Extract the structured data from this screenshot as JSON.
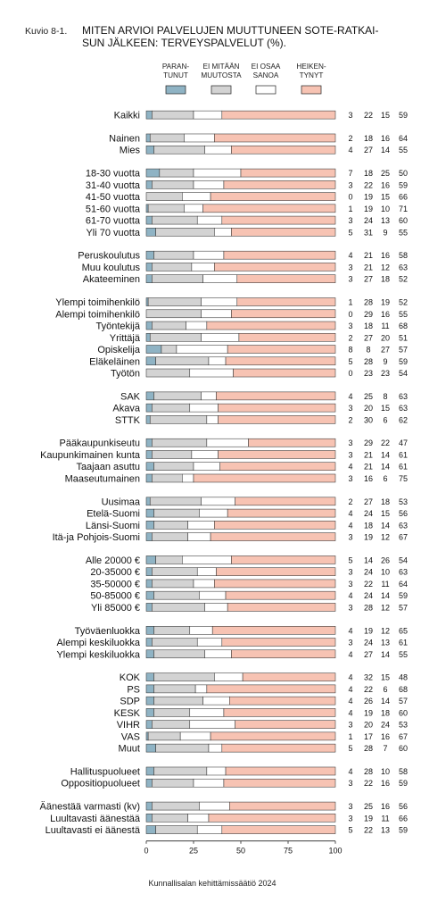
{
  "figure": {
    "number": "Kuvio 8-1.",
    "title_lines": [
      "MITEN ARVIOI PALVELUJEN MUUTTUNEEN SOTE-RATKAI-",
      "SUN JÄLKEEN: TERVEYSPALVELUT (%)."
    ],
    "source": "Kunnallisalan kehittämissäätiö 2024"
  },
  "chart_data": {
    "type": "bar",
    "stacked": true,
    "orientation": "horizontal",
    "title": "MITEN ARVIOI PALVELUJEN MUUTTUNEEN SOTE-RATKAISUN JÄLKEEN: TERVEYSPALVELUT (%).",
    "xlim": [
      0,
      100
    ],
    "xticks": [
      "0",
      "25",
      "50",
      "75",
      "100"
    ],
    "legend": {
      "placement": "top"
    },
    "series": [
      {
        "name_lines": [
          "PARAN-",
          "TUNUT"
        ],
        "color": "#8fb3c4"
      },
      {
        "name_lines": [
          "EI MITÄÄN",
          "MUUTOSTA"
        ],
        "color": "#d3d3d3"
      },
      {
        "name_lines": [
          "EI OSAA",
          "SANOA"
        ],
        "color": "#ffffff"
      },
      {
        "name_lines": [
          "HEIKEN-",
          "TYNYT"
        ],
        "color": "#f7c3b3"
      }
    ],
    "groups": [
      {
        "rows": [
          {
            "label": "Kaikki",
            "values": [
              3,
              22,
              15,
              59
            ]
          }
        ]
      },
      {
        "rows": [
          {
            "label": "Nainen",
            "values": [
              2,
              18,
              16,
              64
            ]
          },
          {
            "label": "Mies",
            "values": [
              4,
              27,
              14,
              55
            ]
          }
        ]
      },
      {
        "rows": [
          {
            "label": "18-30 vuotta",
            "values": [
              7,
              18,
              25,
              50
            ]
          },
          {
            "label": "31-40 vuotta",
            "values": [
              3,
              22,
              16,
              59
            ]
          },
          {
            "label": "41-50 vuotta",
            "values": [
              0,
              19,
              15,
              66
            ]
          },
          {
            "label": "51-60 vuotta",
            "values": [
              1,
              19,
              10,
              71
            ]
          },
          {
            "label": "61-70 vuotta",
            "values": [
              3,
              24,
              13,
              60
            ]
          },
          {
            "label": "Yli 70 vuotta",
            "values": [
              5,
              31,
              9,
              55
            ]
          }
        ]
      },
      {
        "rows": [
          {
            "label": "Peruskoulutus",
            "values": [
              4,
              21,
              16,
              58
            ]
          },
          {
            "label": "Muu koulutus",
            "values": [
              3,
              21,
              12,
              63
            ]
          },
          {
            "label": "Akateeminen",
            "values": [
              3,
              27,
              18,
              52
            ]
          }
        ]
      },
      {
        "rows": [
          {
            "label": "Ylempi toimihenkilö",
            "values": [
              1,
              28,
              19,
              52
            ]
          },
          {
            "label": "Alempi toimihenkilö",
            "values": [
              0,
              29,
              16,
              55
            ]
          },
          {
            "label": "Työntekijä",
            "values": [
              3,
              18,
              11,
              68
            ]
          },
          {
            "label": "Yrittäjä",
            "values": [
              2,
              27,
              20,
              51
            ]
          },
          {
            "label": "Opiskelija",
            "values": [
              8,
              8,
              27,
              57
            ]
          },
          {
            "label": "Eläkeläinen",
            "values": [
              5,
              28,
              9,
              59
            ]
          },
          {
            "label": "Työtön",
            "values": [
              0,
              23,
              23,
              54
            ]
          }
        ]
      },
      {
        "rows": [
          {
            "label": "SAK",
            "values": [
              4,
              25,
              8,
              63
            ]
          },
          {
            "label": "Akava",
            "values": [
              3,
              20,
              15,
              63
            ]
          },
          {
            "label": "STTK",
            "values": [
              2,
              30,
              6,
              62
            ]
          }
        ]
      },
      {
        "rows": [
          {
            "label": "Pääkaupunkiseutu",
            "values": [
              3,
              29,
              22,
              47
            ]
          },
          {
            "label": "Kaupunkimainen kunta",
            "values": [
              3,
              21,
              14,
              61
            ]
          },
          {
            "label": "Taajaan asuttu",
            "values": [
              4,
              21,
              14,
              61
            ]
          },
          {
            "label": "Maaseutumainen",
            "values": [
              3,
              16,
              6,
              75
            ]
          }
        ]
      },
      {
        "rows": [
          {
            "label": "Uusimaa",
            "values": [
              2,
              27,
              18,
              53
            ]
          },
          {
            "label": "Etelä-Suomi",
            "values": [
              4,
              24,
              15,
              56
            ]
          },
          {
            "label": "Länsi-Suomi",
            "values": [
              4,
              18,
              14,
              63
            ]
          },
          {
            "label": "Itä-ja Pohjois-Suomi",
            "values": [
              3,
              19,
              12,
              67
            ]
          }
        ]
      },
      {
        "rows": [
          {
            "label": "Alle 20000 €",
            "values": [
              5,
              14,
              26,
              54
            ]
          },
          {
            "label": "20-35000 €",
            "values": [
              3,
              24,
              10,
              63
            ]
          },
          {
            "label": "35-50000 €",
            "values": [
              3,
              22,
              11,
              64
            ]
          },
          {
            "label": "50-85000 €",
            "values": [
              4,
              24,
              14,
              59
            ]
          },
          {
            "label": "Yli 85000 €",
            "values": [
              3,
              28,
              12,
              57
            ]
          }
        ]
      },
      {
        "rows": [
          {
            "label": "Työväenluokka",
            "values": [
              4,
              19,
              12,
              65
            ]
          },
          {
            "label": "Alempi keskiluokka",
            "values": [
              3,
              24,
              13,
              61
            ]
          },
          {
            "label": "Ylempi keskiluokka",
            "values": [
              4,
              27,
              14,
              55
            ]
          }
        ]
      },
      {
        "rows": [
          {
            "label": "KOK",
            "values": [
              4,
              32,
              15,
              48
            ]
          },
          {
            "label": "PS",
            "values": [
              4,
              22,
              6,
              68
            ]
          },
          {
            "label": "SDP",
            "values": [
              4,
              26,
              14,
              57
            ]
          },
          {
            "label": "KESK",
            "values": [
              4,
              19,
              18,
              60
            ]
          },
          {
            "label": "VIHR",
            "values": [
              3,
              20,
              24,
              53
            ]
          },
          {
            "label": "VAS",
            "values": [
              1,
              17,
              16,
              67
            ]
          },
          {
            "label": "Muut",
            "values": [
              5,
              28,
              7,
              60
            ]
          }
        ]
      },
      {
        "rows": [
          {
            "label": "Hallituspuolueet",
            "values": [
              4,
              28,
              10,
              58
            ]
          },
          {
            "label": "Oppositiopuolueet",
            "values": [
              3,
              22,
              16,
              59
            ]
          }
        ]
      },
      {
        "rows": [
          {
            "label": "Äänestää varmasti (kv)",
            "values": [
              3,
              25,
              16,
              56
            ]
          },
          {
            "label": "Luultavasti äänestää",
            "values": [
              3,
              19,
              11,
              66
            ]
          },
          {
            "label": "Luultavasti ei äänestä",
            "values": [
              5,
              22,
              13,
              59
            ]
          }
        ]
      }
    ]
  }
}
